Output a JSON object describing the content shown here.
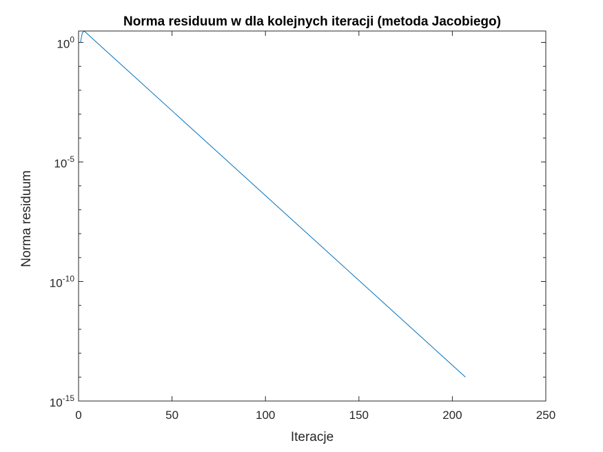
{
  "chart_data": {
    "type": "line",
    "title": "Norma residuum w dla kolejnych iteracji (metoda Jacobiego)",
    "xlabel": "Iteracje",
    "ylabel": "Norma residuum",
    "xlim": [
      0,
      250
    ],
    "ylim": [
      1e-15,
      3
    ],
    "yscale": "log",
    "grid": false,
    "x_ticks": [
      "0",
      "50",
      "100",
      "150",
      "200",
      "250"
    ],
    "y_ticks": [
      {
        "base": "10",
        "exp": "0",
        "value": 1
      },
      {
        "base": "10",
        "exp": "-5",
        "value": 1e-05
      },
      {
        "base": "10",
        "exp": "-10",
        "value": 1e-10
      },
      {
        "base": "10",
        "exp": "-15",
        "value": 1e-15
      }
    ],
    "series": [
      {
        "color": "#0072BD",
        "x": [
          1,
          2,
          3,
          207
        ],
        "y": [
          1.0,
          2.5,
          3.0,
          1e-14
        ]
      }
    ]
  }
}
